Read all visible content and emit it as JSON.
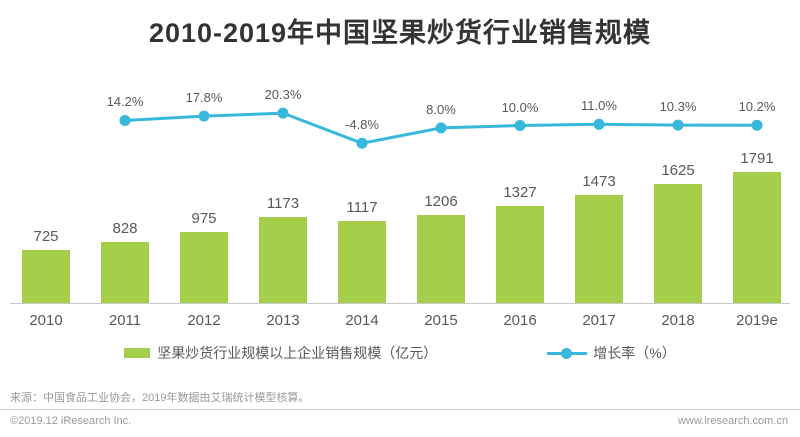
{
  "title": "2010-2019年中国坚果炒货行业销售规模",
  "chart_data": {
    "type": "combo",
    "categories": [
      "2010",
      "2011",
      "2012",
      "2013",
      "2014",
      "2015",
      "2016",
      "2017",
      "2018",
      "2019e"
    ],
    "series": [
      {
        "name": "坚果炒货行业规模以上企业销售规模（亿元）",
        "type": "bar",
        "color": "#a5cf4b",
        "values": [
          725,
          828,
          975,
          1173,
          1117,
          1206,
          1327,
          1473,
          1625,
          1791
        ]
      },
      {
        "name": "增长率（%）",
        "type": "line",
        "color": "#38b8da",
        "values": [
          null,
          14.2,
          17.8,
          20.3,
          -4.8,
          8.0,
          10.0,
          11.0,
          10.3,
          10.2
        ]
      }
    ],
    "title": "2010-2019年中国坚果炒货行业销售规模",
    "xlabel": "",
    "ylabel": "",
    "grid": false,
    "legend_position": "bottom",
    "data_labels": true
  },
  "legend": {
    "bar_label": "坚果炒货行业规模以上企业销售规模（亿元）",
    "line_label": "增长率（%）"
  },
  "footer": {
    "source": "来源：中国食品工业协会，2019年数据由艾瑞统计模型核算。",
    "copyright": "©2019.12 iResearch Inc.",
    "website": "www.iresearch.com.cn"
  },
  "colors": {
    "bar": "#a5cf4b",
    "line": "#38b8da",
    "title_text": "#333333",
    "label_text": "#595959",
    "axis": "#c9c9c9",
    "footer_text": "#999999"
  }
}
